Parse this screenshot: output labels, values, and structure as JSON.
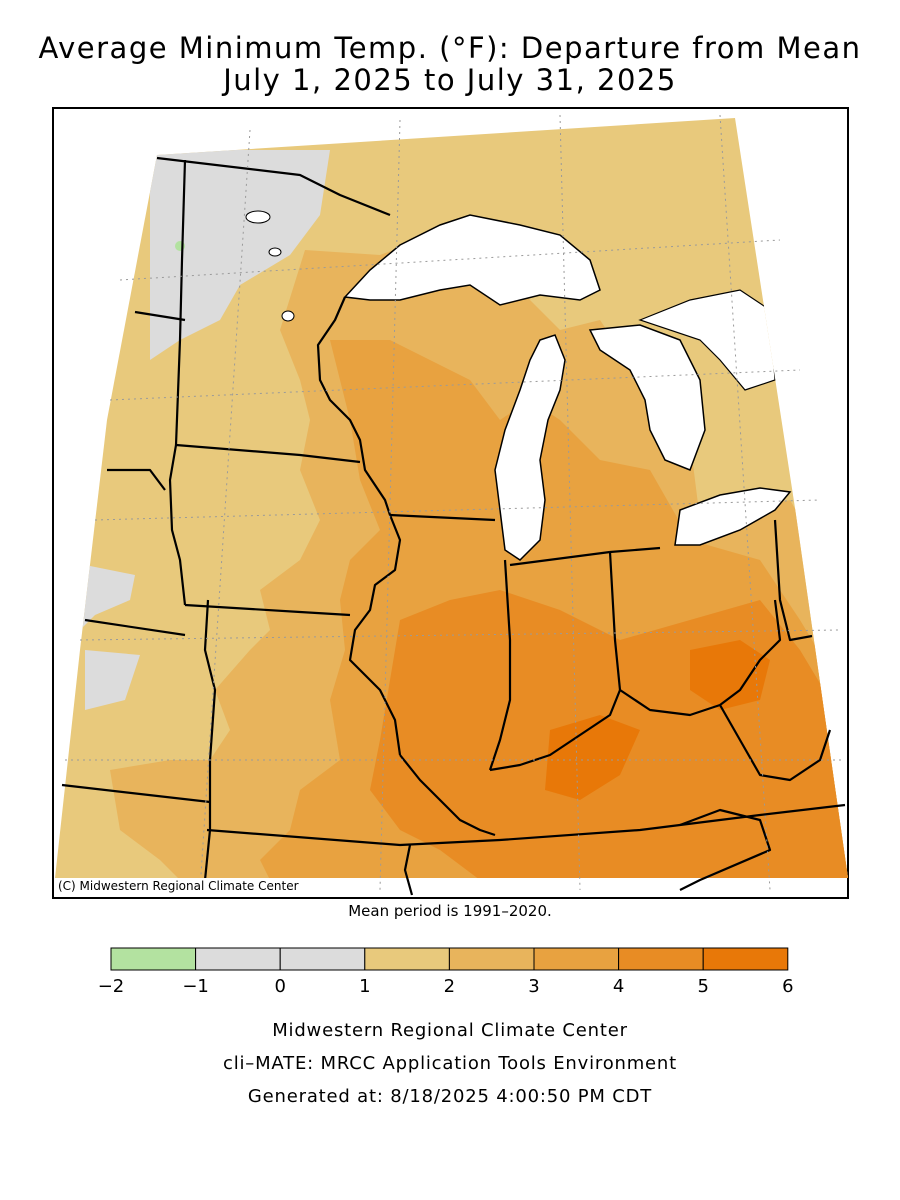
{
  "title_line1": "Average Minimum Temp. (°F): Departure from Mean",
  "title_line2": "July 1, 2025 to July 31, 2025",
  "copyright": "(C) Midwestern Regional Climate Center",
  "mean_period": "Mean period is 1991–2020.",
  "legend": {
    "ticks": [
      "−2",
      "−1",
      "0",
      "1",
      "2",
      "3",
      "4",
      "5",
      "6"
    ],
    "bins": [
      {
        "from": -2,
        "to": -1,
        "color": "#b3e2a0"
      },
      {
        "from": -1,
        "to": 0,
        "color": "#dcdcdc"
      },
      {
        "from": 0,
        "to": 1,
        "color": "#dcdcdc"
      },
      {
        "from": 1,
        "to": 2,
        "color": "#e8c97c"
      },
      {
        "from": 2,
        "to": 3,
        "color": "#e8b45c"
      },
      {
        "from": 3,
        "to": 4,
        "color": "#e8a240"
      },
      {
        "from": 4,
        "to": 5,
        "color": "#e88c24"
      },
      {
        "from": 5,
        "to": 6,
        "color": "#e87808"
      }
    ]
  },
  "footer": {
    "line1": "Midwestern Regional Climate Center",
    "line2": "cli–MATE: MRCC Application Tools Environment",
    "line3": "Generated at: 8/18/2025 4:00:50 PM CDT"
  },
  "colors": {
    "lake": "#ffffff",
    "border": "#000000"
  }
}
